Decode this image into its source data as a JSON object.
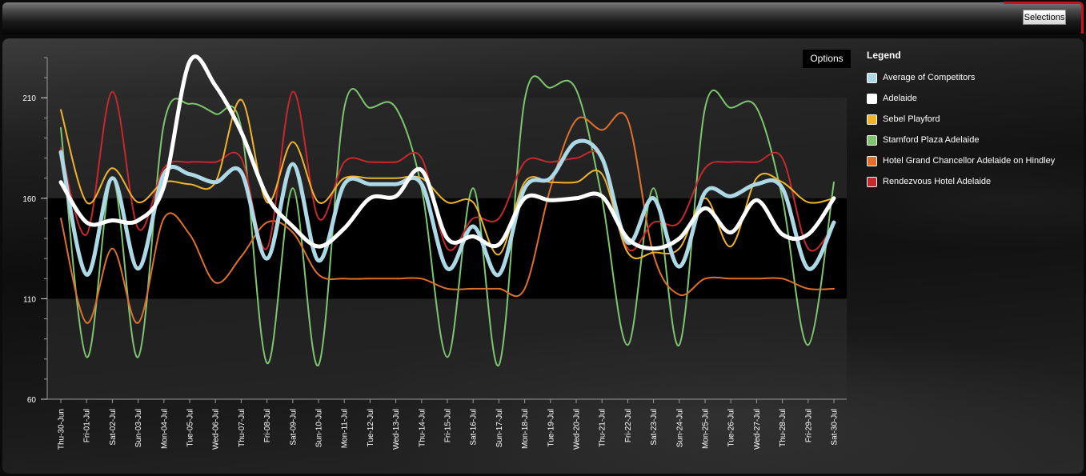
{
  "header": {
    "selections_label": "Selections"
  },
  "options_label": "Options",
  "legend": {
    "title": "Legend",
    "items": [
      {
        "label": "Average of Competitors",
        "color": "#add8e6"
      },
      {
        "label": "Adelaide",
        "color": "#ffffff"
      },
      {
        "label": "Sebel Playford",
        "color": "#f0b429"
      },
      {
        "label": "Stamford Plaza Adelaide",
        "color": "#7dc66e"
      },
      {
        "label": "Hotel Grand Chancellor Adelaide on Hindley",
        "color": "#e07029"
      },
      {
        "label": "Rendezvous Hotel Adelaide",
        "color": "#c8272d"
      }
    ]
  },
  "chart_data": {
    "type": "line",
    "ylim": [
      60,
      230
    ],
    "yticks": [
      60,
      110,
      160,
      210
    ],
    "bands": [
      [
        110,
        160
      ],
      [
        160,
        210
      ],
      [
        60,
        110
      ]
    ],
    "categories": [
      "Thu-30-Jun",
      "Fri-01-Jul",
      "Sat-02-Jul",
      "Sun-03-Jul",
      "Mon-04-Jul",
      "Tue-05-Jul",
      "Wed-06-Jul",
      "Thu-07-Jul",
      "Fri-08-Jul",
      "Sat-09-Jul",
      "Sun-10-Jul",
      "Mon-11-Jul",
      "Tue-12-Jul",
      "Wed-13-Jul",
      "Thu-14-Jul",
      "Fri-15-Jul",
      "Sat-16-Jul",
      "Sun-17-Jul",
      "Mon-18-Jul",
      "Tue-19-Jul",
      "Wed-20-Jul",
      "Thu-21-Jul",
      "Fri-22-Jul",
      "Sat-23-Jul",
      "Sun-24-Jul",
      "Mon-25-Jul",
      "Tue-26-Jul",
      "Wed-27-Jul",
      "Thu-28-Jul",
      "Fri-29-Jul",
      "Sat-30-Jul"
    ],
    "series": [
      {
        "name": "Stamford Plaza Adelaide",
        "color": "#7dc66e",
        "width": 2,
        "values": [
          195,
          81,
          170,
          81,
          197,
          207,
          202,
          195,
          78,
          165,
          77,
          205,
          205,
          205,
          165,
          81,
          165,
          77,
          209,
          215,
          214,
          160,
          87,
          165,
          87,
          205,
          205,
          205,
          160,
          87,
          168
        ]
      },
      {
        "name": "Hotel Grand Chancellor Adelaide on Hindley",
        "color": "#e07029",
        "width": 2,
        "values": [
          150,
          98,
          135,
          98,
          150,
          142,
          118,
          131,
          148,
          143,
          122,
          120,
          120,
          120,
          120,
          115,
          115,
          115,
          115,
          165,
          199,
          194,
          199,
          132,
          112,
          120,
          120,
          120,
          120,
          115,
          115
        ]
      },
      {
        "name": "Rendezvous Hotel Adelaide",
        "color": "#c8272d",
        "width": 2,
        "values": [
          185,
          142,
          213,
          145,
          175,
          178,
          178,
          180,
          135,
          213,
          150,
          178,
          178,
          178,
          180,
          135,
          150,
          150,
          178,
          178,
          180,
          180,
          135,
          148,
          148,
          175,
          178,
          178,
          180,
          135,
          147
        ]
      },
      {
        "name": "Sebel Playford",
        "color": "#f0b429",
        "width": 2,
        "values": [
          204,
          158,
          175,
          158,
          168,
          167,
          168,
          209,
          158,
          188,
          158,
          170,
          170,
          170,
          170,
          158,
          158,
          132,
          168,
          168,
          168,
          172,
          133,
          133,
          135,
          160,
          136,
          170,
          168,
          158,
          160
        ]
      },
      {
        "name": "Average of Competitors",
        "color": "#add8e6",
        "width": 5,
        "values": [
          183,
          122,
          170,
          125,
          172,
          172,
          168,
          173,
          130,
          177,
          129,
          167,
          167,
          167,
          167,
          125,
          146,
          122,
          165,
          170,
          188,
          180,
          138,
          160,
          126,
          163,
          161,
          167,
          165,
          125,
          148
        ]
      },
      {
        "name": "Adelaide",
        "color": "#ffffff",
        "width": 5,
        "values": [
          168,
          148,
          149,
          149,
          166,
          228,
          216,
          193,
          161,
          146,
          136,
          145,
          160,
          161,
          174,
          140,
          141,
          137,
          160,
          159,
          160,
          161,
          140,
          135,
          140,
          155,
          143,
          159,
          142,
          142,
          160
        ]
      }
    ]
  }
}
